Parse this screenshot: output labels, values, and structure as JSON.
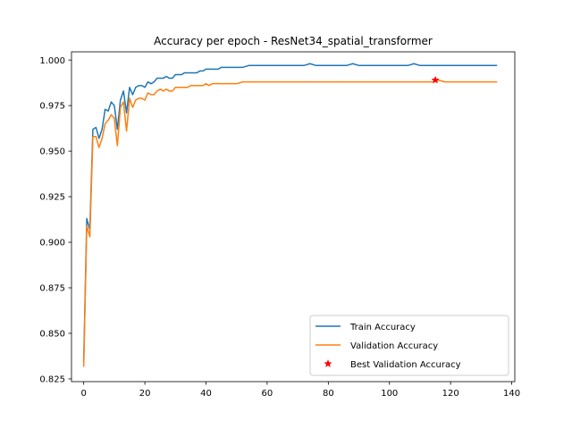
{
  "chart_data": {
    "type": "line",
    "title": "Accuracy per epoch - ResNet34_spatial_transformer",
    "xlabel": "",
    "ylabel": "",
    "xlim": [
      -4.0,
      141.0
    ],
    "ylim": [
      0.8235,
      1.0045
    ],
    "xticks": [
      0,
      20,
      40,
      60,
      80,
      100,
      120,
      140
    ],
    "yticks": [
      0.825,
      0.85,
      0.875,
      0.9,
      0.925,
      0.95,
      0.975,
      1.0
    ],
    "ytick_labels": [
      "0.825",
      "0.850",
      "0.875",
      "0.900",
      "0.925",
      "0.950",
      "0.975",
      "1.000"
    ],
    "grid": false,
    "legend_position": "lower-right",
    "series": [
      {
        "name": "Train Accuracy",
        "color": "#1f77b4",
        "x": [
          0,
          1,
          2,
          3,
          4,
          5,
          6,
          7,
          8,
          9,
          10,
          11,
          12,
          13,
          14,
          15,
          16,
          17,
          18,
          19,
          20,
          21,
          22,
          23,
          24,
          25,
          26,
          27,
          28,
          29,
          30,
          31,
          32,
          33,
          34,
          35,
          36,
          37,
          38,
          39,
          40,
          41,
          42,
          43,
          44,
          45,
          46,
          47,
          48,
          49,
          50,
          52,
          54,
          56,
          58,
          60,
          62,
          64,
          66,
          68,
          70,
          72,
          74,
          76,
          78,
          80,
          82,
          84,
          86,
          88,
          90,
          92,
          94,
          96,
          98,
          100,
          102,
          104,
          106,
          108,
          110,
          112,
          114,
          116,
          118,
          120,
          122,
          124,
          126,
          128,
          130,
          132,
          135
        ],
        "y": [
          0.835,
          0.913,
          0.907,
          0.962,
          0.963,
          0.957,
          0.962,
          0.973,
          0.972,
          0.977,
          0.975,
          0.962,
          0.978,
          0.983,
          0.971,
          0.985,
          0.981,
          0.985,
          0.986,
          0.986,
          0.985,
          0.988,
          0.987,
          0.988,
          0.99,
          0.99,
          0.99,
          0.991,
          0.99,
          0.99,
          0.992,
          0.992,
          0.992,
          0.993,
          0.993,
          0.993,
          0.993,
          0.993,
          0.994,
          0.994,
          0.995,
          0.995,
          0.995,
          0.995,
          0.995,
          0.996,
          0.996,
          0.996,
          0.996,
          0.996,
          0.996,
          0.996,
          0.997,
          0.997,
          0.997,
          0.997,
          0.997,
          0.997,
          0.997,
          0.997,
          0.997,
          0.997,
          0.998,
          0.997,
          0.997,
          0.997,
          0.997,
          0.997,
          0.997,
          0.998,
          0.997,
          0.997,
          0.997,
          0.997,
          0.997,
          0.997,
          0.997,
          0.997,
          0.997,
          0.998,
          0.997,
          0.997,
          0.997,
          0.997,
          0.997,
          0.997,
          0.997,
          0.997,
          0.997,
          0.997,
          0.997,
          0.997,
          0.997
        ]
      },
      {
        "name": "Validation Accuracy",
        "color": "#ff7f0e",
        "x": [
          0,
          1,
          2,
          3,
          4,
          5,
          6,
          7,
          8,
          9,
          10,
          11,
          12,
          13,
          14,
          15,
          16,
          17,
          18,
          19,
          20,
          21,
          22,
          23,
          24,
          25,
          26,
          27,
          28,
          29,
          30,
          31,
          32,
          33,
          34,
          35,
          36,
          37,
          38,
          39,
          40,
          41,
          42,
          43,
          44,
          45,
          46,
          47,
          48,
          49,
          50,
          52,
          54,
          56,
          58,
          60,
          62,
          64,
          66,
          68,
          70,
          72,
          74,
          76,
          78,
          80,
          82,
          84,
          86,
          88,
          90,
          92,
          94,
          96,
          98,
          100,
          102,
          104,
          106,
          108,
          110,
          112,
          114,
          116,
          118,
          120,
          122,
          124,
          126,
          128,
          130,
          132,
          135
        ],
        "y": [
          0.832,
          0.909,
          0.903,
          0.958,
          0.958,
          0.952,
          0.957,
          0.965,
          0.967,
          0.97,
          0.968,
          0.953,
          0.974,
          0.977,
          0.961,
          0.979,
          0.974,
          0.978,
          0.979,
          0.979,
          0.978,
          0.982,
          0.981,
          0.981,
          0.983,
          0.984,
          0.983,
          0.984,
          0.983,
          0.983,
          0.985,
          0.985,
          0.985,
          0.985,
          0.985,
          0.986,
          0.986,
          0.986,
          0.986,
          0.986,
          0.987,
          0.986,
          0.987,
          0.987,
          0.987,
          0.987,
          0.987,
          0.987,
          0.987,
          0.987,
          0.987,
          0.988,
          0.988,
          0.988,
          0.988,
          0.988,
          0.988,
          0.988,
          0.988,
          0.988,
          0.988,
          0.988,
          0.988,
          0.988,
          0.988,
          0.988,
          0.988,
          0.988,
          0.988,
          0.988,
          0.988,
          0.988,
          0.988,
          0.988,
          0.988,
          0.988,
          0.988,
          0.988,
          0.988,
          0.988,
          0.988,
          0.988,
          0.988,
          0.989,
          0.988,
          0.988,
          0.988,
          0.988,
          0.988,
          0.988,
          0.988,
          0.988,
          0.988
        ]
      }
    ],
    "best_point": {
      "name": "Best Validation Accuracy",
      "color": "#ff0000",
      "marker": "star",
      "x": 115,
      "y": 0.989
    }
  }
}
